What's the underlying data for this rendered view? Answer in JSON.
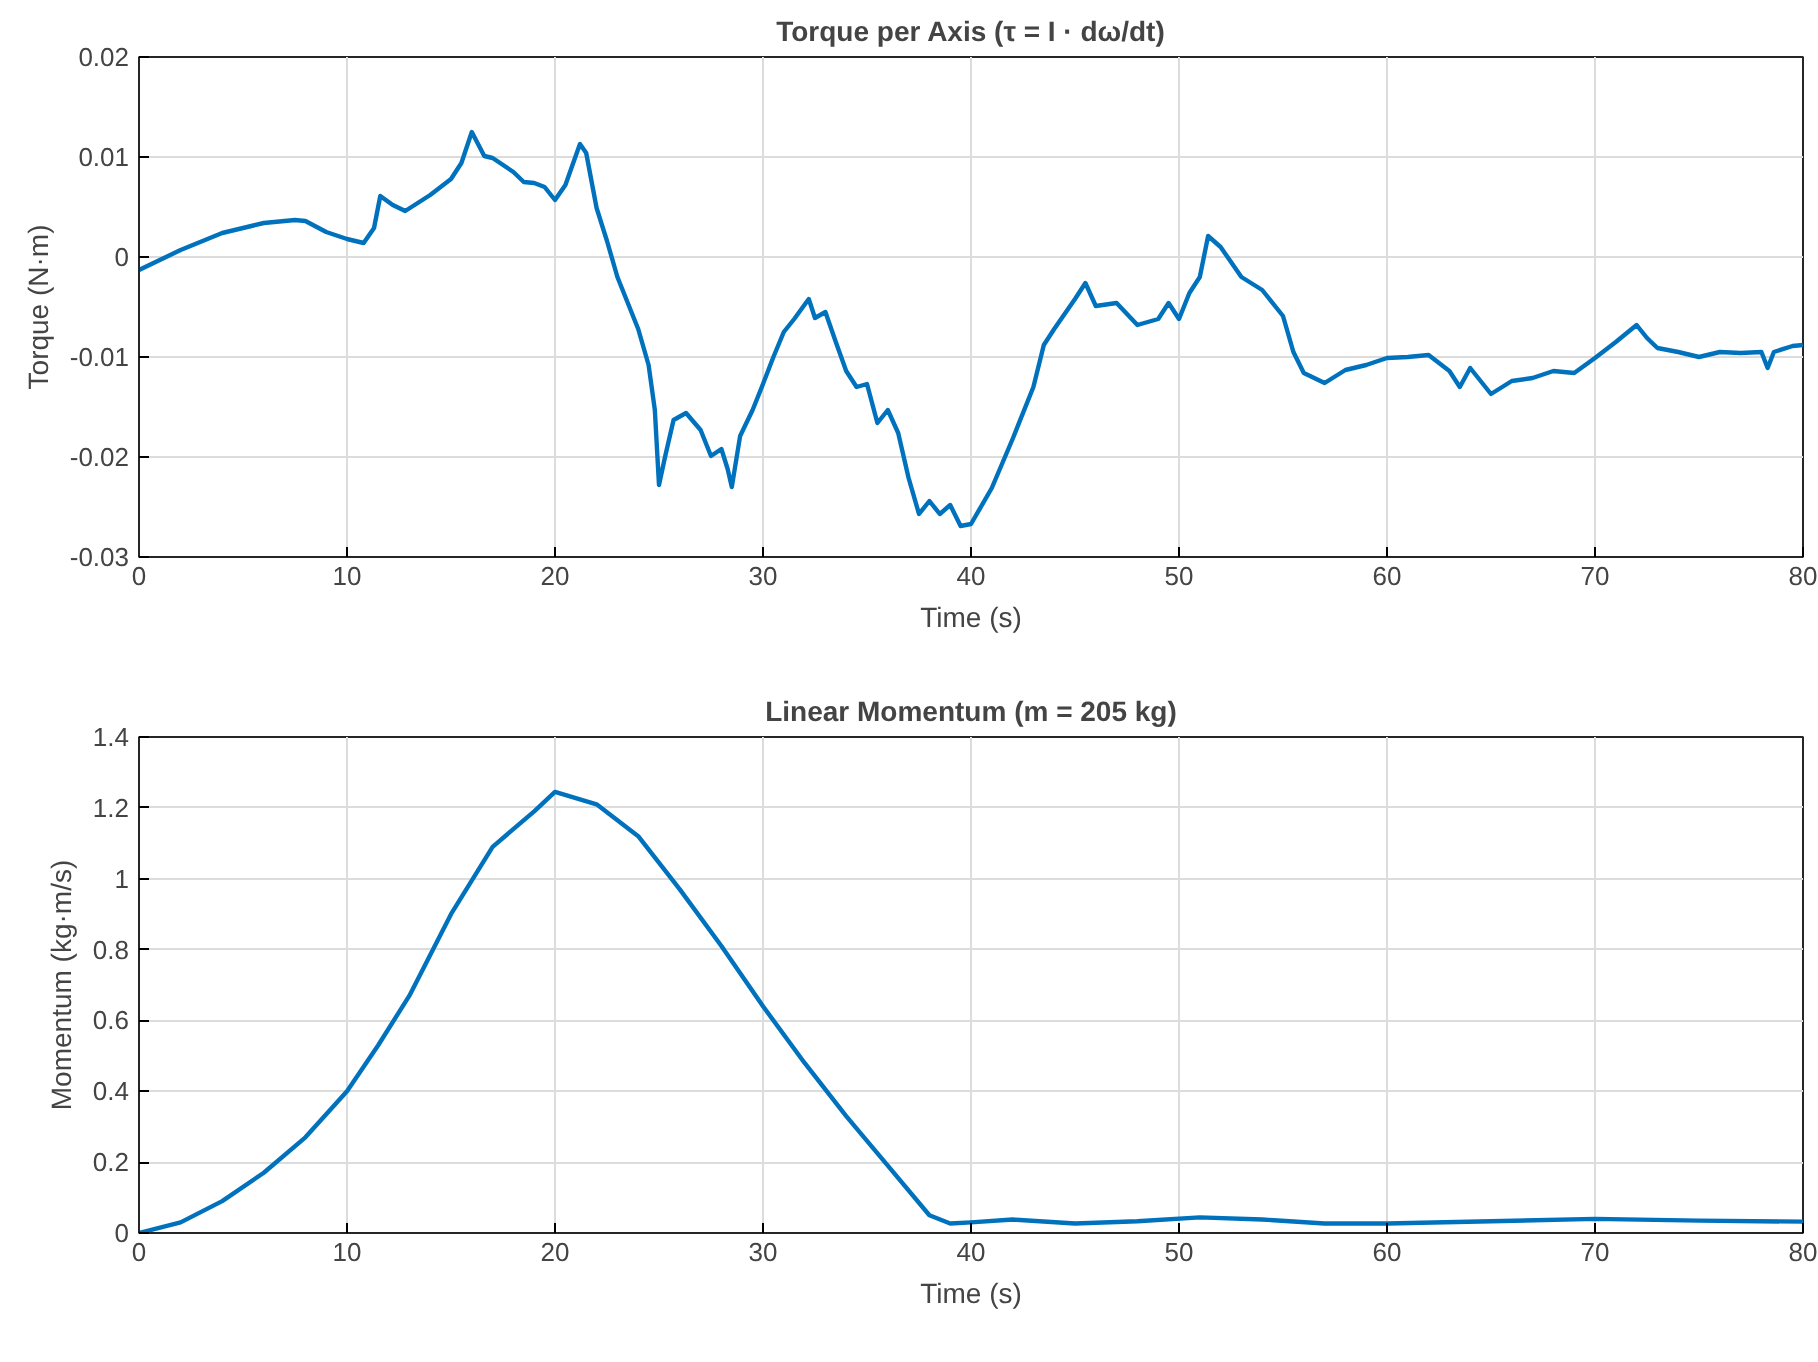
{
  "chart_data": [
    {
      "type": "line",
      "title": "Torque per Axis (τ = I · dω/dt)",
      "xlabel": "Time (s)",
      "ylabel": "Torque (N·m)",
      "xlim": [
        0,
        80
      ],
      "ylim": [
        -0.03,
        0.02
      ],
      "xticks": [
        0,
        10,
        20,
        30,
        40,
        50,
        60,
        70,
        80
      ],
      "yticks": [
        -0.03,
        -0.02,
        -0.01,
        0,
        0.01,
        0.02
      ],
      "grid": true,
      "series": [
        {
          "color": "#0072bd",
          "x": [
            0,
            2,
            4,
            6,
            7.5,
            8,
            9,
            10,
            10.8,
            11.3,
            11.6,
            12.2,
            12.8,
            14,
            15,
            15.5,
            16,
            16.6,
            17,
            18,
            18.5,
            19,
            19.5,
            20,
            20.5,
            21.2,
            21.5,
            22,
            22.5,
            23,
            23.5,
            24,
            24.5,
            24.8,
            25,
            25.3,
            25.7,
            26.3,
            27,
            27.5,
            28,
            28.3,
            28.5,
            28.9,
            29.5,
            30,
            30.5,
            31,
            31.5,
            32.2,
            32.5,
            33,
            33.5,
            34,
            34.5,
            35,
            35.5,
            36,
            36.5,
            37,
            37.5,
            38,
            38.5,
            39,
            39.5,
            40,
            41,
            42,
            43,
            43.5,
            44,
            45,
            45.5,
            46,
            47,
            48,
            49,
            49.5,
            50,
            50.5,
            51,
            51.4,
            52,
            53,
            54,
            55,
            55.5,
            56,
            57,
            58,
            59,
            60,
            61,
            62,
            63,
            63.5,
            64,
            65,
            66,
            67,
            68,
            69,
            70,
            71,
            72,
            72.5,
            73,
            74,
            75,
            76,
            77,
            78,
            78.3,
            78.6,
            79.5,
            80
          ],
          "values": [
            -0.0013,
            0.0007,
            0.0024,
            0.0034,
            0.0037,
            0.0036,
            0.0025,
            0.0018,
            0.0014,
            0.0029,
            0.0061,
            0.0052,
            0.0046,
            0.0062,
            0.0078,
            0.0094,
            0.0125,
            0.0101,
            0.0099,
            0.0085,
            0.0075,
            0.0074,
            0.007,
            0.0057,
            0.0072,
            0.0113,
            0.0104,
            0.0049,
            0.0016,
            -0.002,
            -0.0046,
            -0.0072,
            -0.0108,
            -0.0153,
            -0.0228,
            -0.0199,
            -0.0163,
            -0.0156,
            -0.0173,
            -0.0199,
            -0.0192,
            -0.0212,
            -0.023,
            -0.0179,
            -0.0153,
            -0.0127,
            -0.01,
            -0.0075,
            -0.0062,
            -0.0042,
            -0.0061,
            -0.0055,
            -0.0085,
            -0.0114,
            -0.013,
            -0.0127,
            -0.0166,
            -0.0153,
            -0.0176,
            -0.0221,
            -0.0257,
            -0.0244,
            -0.0257,
            -0.0248,
            -0.0269,
            -0.0267,
            -0.0231,
            -0.0182,
            -0.013,
            -0.0088,
            -0.0072,
            -0.0042,
            -0.0026,
            -0.0049,
            -0.0046,
            -0.0068,
            -0.0062,
            -0.0046,
            -0.0062,
            -0.0036,
            -0.002,
            0.0021,
            0.001,
            -0.002,
            -0.0033,
            -0.0059,
            -0.0095,
            -0.0116,
            -0.0126,
            -0.0113,
            -0.0108,
            -0.0101,
            -0.01,
            -0.0098,
            -0.0114,
            -0.013,
            -0.0111,
            -0.0137,
            -0.0124,
            -0.0121,
            -0.0114,
            -0.0116,
            -0.0101,
            -0.0085,
            -0.0068,
            -0.0081,
            -0.0091,
            -0.0095,
            -0.01,
            -0.0095,
            -0.0096,
            -0.0095,
            -0.0111,
            -0.0095,
            -0.0089,
            -0.0088
          ]
        }
      ]
    },
    {
      "type": "line",
      "title": "Linear Momentum (m = 205 kg)",
      "xlabel": "Time (s)",
      "ylabel": "Momentum (kg·m/s)",
      "xlim": [
        0,
        80
      ],
      "ylim": [
        0,
        1.4
      ],
      "xticks": [
        0,
        10,
        20,
        30,
        40,
        50,
        60,
        70,
        80
      ],
      "yticks": [
        0,
        0.2,
        0.4,
        0.6,
        0.8,
        1,
        1.2,
        1.4
      ],
      "grid": true,
      "series": [
        {
          "color": "#0072bd",
          "x": [
            0,
            2,
            4,
            6,
            8,
            10,
            11.5,
            13,
            15,
            17,
            19,
            20,
            22,
            24,
            26,
            28,
            30,
            32,
            34,
            36,
            38,
            39,
            40,
            42,
            45,
            48,
            51,
            54,
            57,
            60,
            65,
            70,
            75,
            80
          ],
          "values": [
            0,
            0.03,
            0.09,
            0.17,
            0.27,
            0.4,
            0.53,
            0.67,
            0.9,
            1.09,
            1.19,
            1.245,
            1.21,
            1.12,
            0.97,
            0.81,
            0.64,
            0.48,
            0.33,
            0.19,
            0.05,
            0.027,
            0.03,
            0.038,
            0.027,
            0.033,
            0.044,
            0.038,
            0.027,
            0.027,
            0.033,
            0.04,
            0.035,
            0.032
          ]
        }
      ]
    }
  ]
}
